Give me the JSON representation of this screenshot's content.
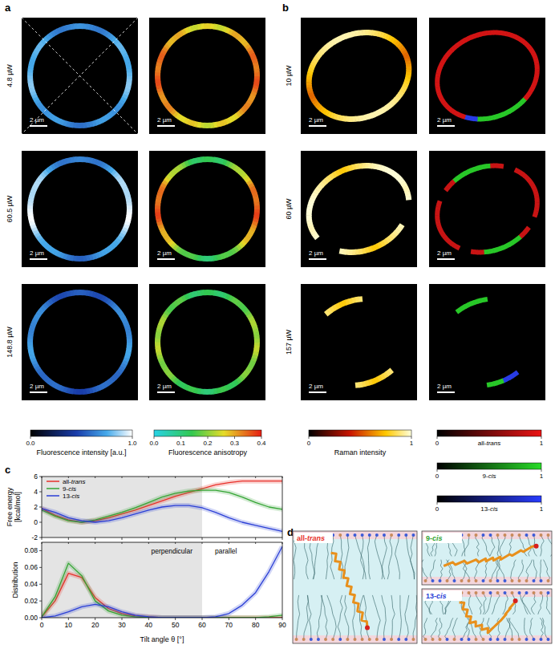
{
  "chart_data": [
    {
      "type": "line",
      "y_label": [
        "Free energy",
        "[kcal/mol]"
      ],
      "x": [
        0,
        5,
        10,
        15,
        20,
        25,
        30,
        35,
        40,
        45,
        50,
        55,
        60,
        65,
        70,
        75,
        80,
        85,
        90
      ],
      "xlim": [
        0,
        90
      ],
      "xticks": [
        0,
        10,
        20,
        30,
        40,
        50,
        60,
        70,
        80,
        90
      ],
      "ylim": [
        -2,
        6
      ],
      "yticks": [
        -2,
        0,
        2,
        4,
        6
      ],
      "tick_labels": "y",
      "legend": "upper left",
      "shaded_xrange": [
        0,
        60
      ],
      "series": [
        {
          "name": "all-trans",
          "color": "#e8302a",
          "values": [
            1.8,
            0.9,
            0.3,
            0.0,
            0.2,
            0.6,
            1.1,
            1.6,
            2.2,
            2.8,
            3.4,
            3.9,
            4.4,
            4.9,
            5.2,
            5.4,
            5.4,
            5.4,
            5.4
          ]
        },
        {
          "name": "9-cis",
          "color": "#35a535",
          "values": [
            1.6,
            0.8,
            0.2,
            0.0,
            0.3,
            0.8,
            1.3,
            1.9,
            2.6,
            3.3,
            3.8,
            4.1,
            4.2,
            4.2,
            3.9,
            3.3,
            2.6,
            2.0,
            1.7
          ]
        },
        {
          "name": "13-cis",
          "color": "#2b3fd6",
          "values": [
            1.8,
            1.3,
            0.6,
            0.2,
            0.0,
            0.2,
            0.6,
            1.1,
            1.6,
            2.0,
            2.2,
            2.2,
            1.9,
            1.3,
            0.6,
            0.0,
            -0.4,
            -0.8,
            -1.2
          ]
        }
      ]
    },
    {
      "type": "line",
      "x_label": "Tilt angle θ [°]",
      "y_label": [
        "Distribution"
      ],
      "x": [
        0,
        5,
        10,
        15,
        20,
        25,
        30,
        35,
        40,
        45,
        50,
        55,
        60,
        65,
        70,
        75,
        80,
        85,
        90
      ],
      "xlim": [
        0,
        90
      ],
      "xticks": [
        0,
        10,
        20,
        30,
        40,
        50,
        60,
        70,
        80,
        90
      ],
      "ylim": [
        0,
        0.09
      ],
      "yticks": [
        {
          "value": 0,
          "label": "0.00"
        },
        {
          "value": 0.02,
          "label": "0.02"
        },
        {
          "value": 0.04,
          "label": "0.04"
        },
        {
          "value": 0.06,
          "label": "0.06"
        },
        {
          "value": 0.08,
          "label": "0.08"
        }
      ],
      "shaded_xrange": [
        0,
        60
      ],
      "annotations": [
        "perpendicular",
        "parallel"
      ],
      "series": [
        {
          "color": "#e8302a",
          "values": [
            0.001,
            0.02,
            0.053,
            0.048,
            0.024,
            0.011,
            0.005,
            0.002,
            0.001,
            0,
            0,
            0,
            0,
            0,
            0,
            0,
            0,
            0,
            0
          ]
        },
        {
          "color": "#35a535",
          "values": [
            0.001,
            0.025,
            0.065,
            0.05,
            0.02,
            0.008,
            0.003,
            0.001,
            0,
            0,
            0,
            0,
            0,
            0,
            0,
            0,
            0,
            0.001,
            0.003
          ]
        },
        {
          "color": "#2b3fd6",
          "values": [
            0,
            0.002,
            0.007,
            0.013,
            0.016,
            0.013,
            0.007,
            0.003,
            0.001,
            0,
            0,
            0,
            0,
            0.001,
            0.005,
            0.015,
            0.03,
            0.055,
            0.085
          ]
        }
      ]
    }
  ],
  "panels": {
    "labels": [
      "a",
      "b",
      "c",
      "d"
    ],
    "scale_bar": "2 µm",
    "a": {
      "rows": [
        "4.8 µW",
        "60.5 µW",
        "148.8 µW"
      ],
      "colorbars": [
        {
          "label": "Fluorescence intensity [a.u.]",
          "range": [
            0,
            1
          ],
          "ticks": [
            {
              "value": 0,
              "label": "0.0"
            },
            {
              "value": 1,
              "label": "1.0"
            }
          ]
        },
        {
          "label": "Fluorescence anisotropy",
          "range": [
            0,
            0.4
          ],
          "ticks": [
            {
              "value": 0,
              "label": "0.0"
            },
            {
              "value": 0.1,
              "label": "0.1"
            },
            {
              "value": 0.2,
              "label": "0.2"
            },
            {
              "value": 0.3,
              "label": "0.3"
            },
            {
              "value": 0.4,
              "label": "0.4"
            }
          ]
        }
      ]
    },
    "b": {
      "rows": [
        "10 µW",
        "60 µW",
        "157 µW"
      ],
      "colorbars": [
        {
          "label": "Raman intensity",
          "range": [
            0,
            1
          ],
          "ticks": [
            0,
            1
          ]
        },
        {
          "label": "all-trans",
          "range": [
            0,
            1
          ],
          "ticks": [
            0,
            1
          ]
        },
        {
          "label": "9-cis",
          "range": [
            0,
            1
          ],
          "ticks": [
            0,
            1
          ]
        },
        {
          "label": "13-cis",
          "range": [
            0,
            1
          ],
          "ticks": [
            0,
            1
          ]
        }
      ]
    },
    "d": {
      "snapshots": [
        "all-trans",
        "9-cis",
        "13-cis"
      ]
    }
  }
}
